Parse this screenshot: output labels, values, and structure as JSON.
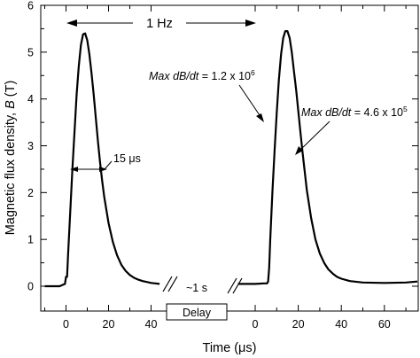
{
  "chart_data": {
    "type": "line",
    "xlabel_prefix": "Time (",
    "xlabel_unit": "μs",
    "xlabel_suffix": ")",
    "ylabel_prefix": "Magnetic flux density, ",
    "ylabel_symbol": "B",
    "ylabel_suffix": " (T)",
    "ylim": [
      0,
      6
    ],
    "grid": false,
    "y_ticks": [
      "0",
      "1",
      "2",
      "3",
      "4",
      "5",
      "6"
    ],
    "x_ticks_left": [
      "0",
      "20",
      "40"
    ],
    "x_ticks_right": [
      "0",
      "20",
      "40",
      "60"
    ],
    "x_tick_values_left": [
      0,
      20,
      40
    ],
    "x_tick_values_right": [
      0,
      20,
      40,
      60
    ],
    "series": [
      {
        "pulse": "first",
        "x": [
          -10,
          -3,
          -0.5,
          0,
          0.5,
          1,
          2,
          3,
          4,
          5,
          6,
          7,
          8,
          9,
          10,
          11,
          12,
          13,
          14,
          15,
          16,
          17,
          18,
          20,
          22,
          24,
          26,
          28,
          30,
          32,
          34,
          36,
          38,
          40,
          42,
          44
        ],
        "y": [
          0,
          0,
          0.05,
          0.2,
          0.2,
          0.7,
          1.6,
          2.5,
          3.3,
          4.1,
          4.7,
          5.15,
          5.38,
          5.4,
          5.25,
          4.95,
          4.55,
          4.1,
          3.6,
          3.1,
          2.65,
          2.25,
          1.9,
          1.35,
          0.95,
          0.66,
          0.46,
          0.33,
          0.24,
          0.18,
          0.14,
          0.11,
          0.09,
          0.07,
          0.06,
          0.05
        ]
      },
      {
        "pulse": "second",
        "x": [
          -8,
          0,
          4,
          5.5,
          6,
          6.5,
          7,
          8,
          9,
          10,
          11,
          12,
          13,
          14,
          15,
          16,
          17,
          18,
          19,
          20,
          21,
          22,
          23,
          24,
          26,
          28,
          30,
          32,
          34,
          36,
          38,
          40,
          44,
          50,
          60,
          70,
          80
        ],
        "y": [
          0.05,
          0.05,
          0.06,
          0.06,
          0.1,
          0.4,
          1.0,
          2.0,
          2.9,
          3.7,
          4.4,
          4.95,
          5.3,
          5.45,
          5.45,
          5.3,
          5.0,
          4.6,
          4.2,
          3.75,
          3.3,
          2.85,
          2.45,
          2.05,
          1.45,
          1.0,
          0.7,
          0.5,
          0.36,
          0.27,
          0.2,
          0.16,
          0.11,
          0.08,
          0.07,
          0.08,
          0.1
        ]
      }
    ],
    "annotations": {
      "freq_label": "1 Hz",
      "width_label_value": "15 ",
      "width_label_unit": "μs",
      "interval_label": "~1 s",
      "delay_label": "Delay",
      "slope1_prefix": "Max dB/dt",
      "slope1_mid": " = 1.2 x 10",
      "slope1_exp": "6",
      "slope2_prefix": "Max dB/dt",
      "slope2_mid": " = 4.6 x 10",
      "slope2_exp": "5"
    }
  }
}
